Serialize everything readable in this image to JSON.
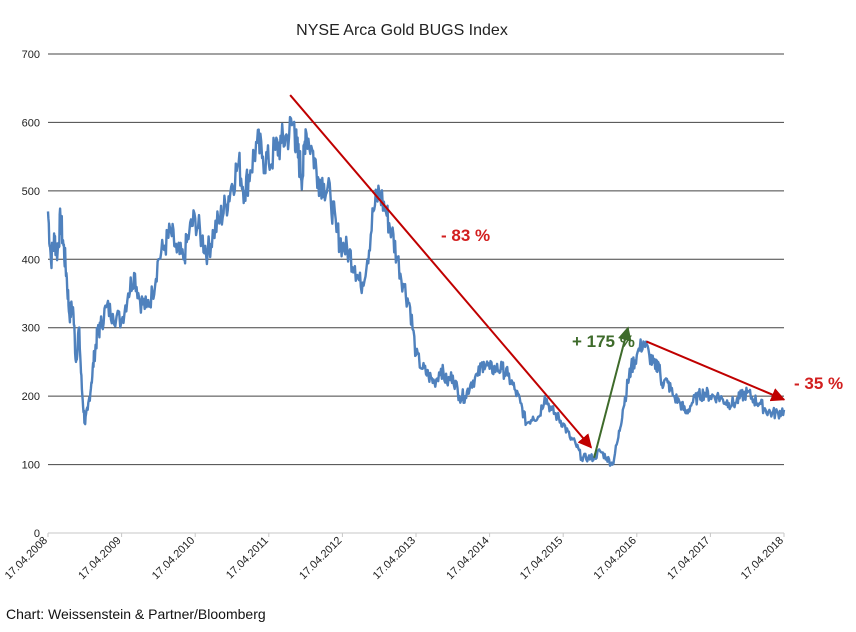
{
  "chart_data": {
    "type": "line",
    "title": "NYSE Arca Gold BUGS Index",
    "xlabel": "",
    "ylabel": "",
    "ylim": [
      0,
      700
    ],
    "y_ticks": [
      0,
      100,
      200,
      300,
      400,
      500,
      600,
      700
    ],
    "x_ticks": [
      "17.04.2008",
      "17.04.2009",
      "17.04.2010",
      "17.04.2011",
      "17.04.2012",
      "17.04.2013",
      "17.04.2014",
      "17.04.2015",
      "17.04.2016",
      "17.04.2017",
      "17.04.2018"
    ],
    "grid": true,
    "series": [
      {
        "color": "#4f81bd",
        "x": [
          2008.29,
          2008.33,
          2008.38,
          2008.42,
          2008.46,
          2008.5,
          2008.54,
          2008.58,
          2008.63,
          2008.67,
          2008.71,
          2008.75,
          2008.79,
          2008.83,
          2008.88,
          2008.92,
          2008.96,
          2009.0,
          2009.08,
          2009.17,
          2009.29,
          2009.38,
          2009.46,
          2009.54,
          2009.63,
          2009.71,
          2009.79,
          2009.88,
          2009.96,
          2010.04,
          2010.13,
          2010.21,
          2010.29,
          2010.38,
          2010.46,
          2010.54,
          2010.63,
          2010.71,
          2010.79,
          2010.88,
          2010.96,
          2011.04,
          2011.13,
          2011.21,
          2011.29,
          2011.38,
          2011.46,
          2011.54,
          2011.63,
          2011.67,
          2011.71,
          2011.75,
          2011.79,
          2011.88,
          2011.96,
          2012.04,
          2012.13,
          2012.21,
          2012.29,
          2012.38,
          2012.46,
          2012.54,
          2012.63,
          2012.71,
          2012.79,
          2012.88,
          2012.96,
          2013.04,
          2013.13,
          2013.21,
          2013.29,
          2013.38,
          2013.46,
          2013.54,
          2013.63,
          2013.71,
          2013.79,
          2013.88,
          2013.96,
          2014.04,
          2014.13,
          2014.21,
          2014.29,
          2014.38,
          2014.46,
          2014.54,
          2014.63,
          2014.71,
          2014.79,
          2014.88,
          2014.96,
          2015.04,
          2015.13,
          2015.21,
          2015.29,
          2015.38,
          2015.46,
          2015.54,
          2015.63,
          2015.71,
          2015.79,
          2015.88,
          2015.96,
          2016.04,
          2016.1,
          2016.17,
          2016.21,
          2016.29,
          2016.38,
          2016.46,
          2016.54,
          2016.58,
          2016.63,
          2016.71,
          2016.79,
          2016.88,
          2016.96,
          2017.04,
          2017.13,
          2017.21,
          2017.29,
          2017.38,
          2017.46,
          2017.54,
          2017.63,
          2017.71,
          2017.79,
          2017.88,
          2017.96,
          2018.04,
          2018.13,
          2018.21,
          2018.29
        ],
        "values": [
          470,
          400,
          430,
          410,
          460,
          420,
          380,
          320,
          330,
          250,
          300,
          210,
          160,
          180,
          220,
          260,
          290,
          300,
          330,
          320,
          310,
          350,
          380,
          340,
          330,
          350,
          400,
          420,
          440,
          410,
          400,
          440,
          460,
          430,
          410,
          440,
          460,
          480,
          510,
          540,
          500,
          530,
          570,
          550,
          540,
          560,
          570,
          580,
          600,
          560,
          540,
          520,
          590,
          560,
          520,
          510,
          490,
          440,
          420,
          410,
          390,
          360,
          400,
          470,
          500,
          470,
          440,
          400,
          360,
          330,
          260,
          240,
          230,
          220,
          240,
          220,
          230,
          200,
          200,
          220,
          230,
          250,
          240,
          240,
          240,
          230,
          210,
          190,
          160,
          170,
          170,
          200,
          180,
          170,
          160,
          140,
          130,
          110,
          110,
          110,
          120,
          110,
          100,
          140,
          180,
          220,
          240,
          260,
          280,
          260,
          240,
          250,
          220,
          220,
          200,
          190,
          175,
          190,
          200,
          205,
          200,
          200,
          195,
          190,
          190,
          200,
          205,
          195,
          190,
          180,
          175,
          175,
          180
        ]
      }
    ],
    "annotations": [
      {
        "text": "- 83 %",
        "color": "#d21f1f",
        "from": {
          "x": 2011.58,
          "y": 640
        },
        "to": {
          "x": 2015.67,
          "y": 125
        }
      },
      {
        "text": "+ 175 %",
        "color": "#3e6b2b",
        "from": {
          "x": 2015.71,
          "y": 110
        },
        "to": {
          "x": 2016.17,
          "y": 300
        }
      },
      {
        "text": "- 35 %",
        "color": "#d21f1f",
        "from": {
          "x": 2016.42,
          "y": 280
        },
        "to": {
          "x": 2018.29,
          "y": 195
        }
      }
    ]
  },
  "source": "Chart: Weissenstein & Partner/Bloomberg"
}
